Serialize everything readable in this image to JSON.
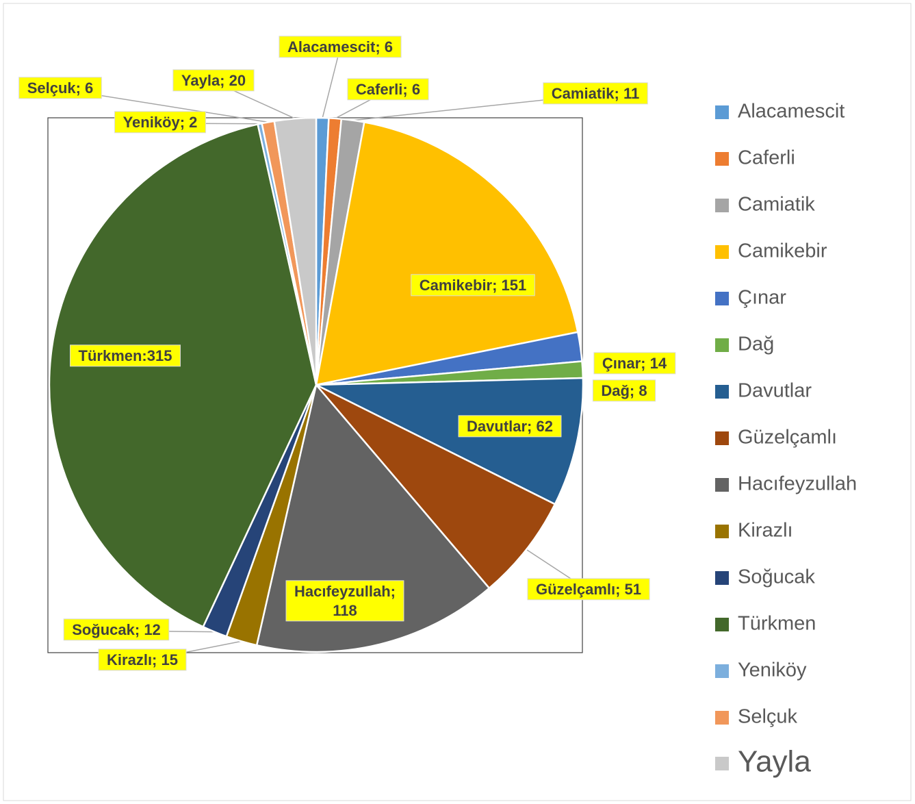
{
  "chart_data": {
    "type": "pie",
    "categories": [
      "Alacamescit",
      "Caferli",
      "Camiatik",
      "Camikebir",
      "Çınar",
      "Dağ",
      "Davutlar",
      "Güzelçamlı",
      "Hacıfeyzullah",
      "Kirazlı",
      "Soğucak",
      "Türkmen",
      "Yeniköy",
      "Selçuk",
      "Yayla"
    ],
    "values": [
      6,
      6,
      11,
      151,
      14,
      8,
      62,
      51,
      118,
      15,
      12,
      315,
      2,
      6,
      20
    ],
    "value_labels": [
      "Alacamescit; 6",
      "Caferli; 6",
      "Camiatik; 11",
      "Camikebir; 151",
      "Çınar; 14",
      "Dağ; 8",
      "Davutlar; 62",
      "Güzelçamlı; 51",
      "Hacıfeyzullah;\n118",
      "Kirazlı; 15",
      "Soğucak; 12",
      "Türkmen:315",
      "Yeniköy; 2",
      "Selçuk; 6",
      "Yayla; 20"
    ],
    "colors": [
      "#5b9bd5",
      "#ed7d31",
      "#a5a5a5",
      "#ffc000",
      "#4472c4",
      "#70ad47",
      "#255e91",
      "#9e480e",
      "#636363",
      "#997300",
      "#264478",
      "#43682b",
      "#7cafdd",
      "#f1975a",
      "#c9c9c9"
    ],
    "legend": "right"
  }
}
